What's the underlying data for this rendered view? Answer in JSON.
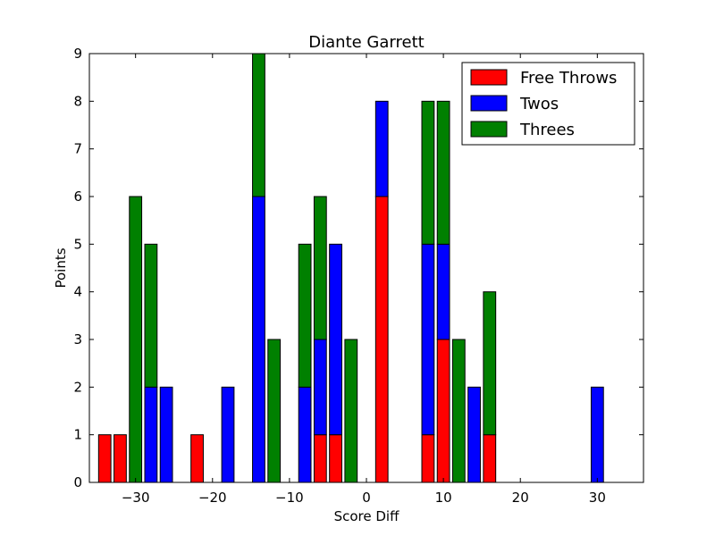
{
  "chart_data": {
    "type": "bar",
    "stacked": true,
    "title": "Diante Garrett",
    "xlabel": "Score Diff",
    "ylabel": "Points",
    "xlim": [
      -36,
      36
    ],
    "ylim": [
      0,
      9
    ],
    "xticks": [
      -30,
      -20,
      -10,
      0,
      10,
      20,
      30
    ],
    "yticks": [
      0,
      1,
      2,
      3,
      4,
      5,
      6,
      7,
      8,
      9
    ],
    "x": [
      -35,
      -34,
      -32,
      -30,
      -28,
      -26,
      -24,
      -22,
      -20,
      -18,
      -16,
      -14,
      -12,
      -10,
      -8,
      -6,
      -4,
      -2,
      0,
      2,
      4,
      6,
      8,
      10,
      12,
      14,
      16,
      18,
      20,
      22,
      24,
      26,
      28,
      30,
      32,
      34
    ],
    "series": [
      {
        "name": "Free Throws",
        "color": "#ff0000",
        "values": [
          0,
          1,
          1,
          0,
          0,
          0,
          0,
          1,
          0,
          0,
          0,
          0,
          0,
          0,
          0,
          1,
          1,
          0,
          0,
          6,
          0,
          0,
          1,
          3,
          0,
          0,
          1,
          0,
          0,
          0,
          0,
          0,
          0,
          0,
          0,
          0
        ]
      },
      {
        "name": "Twos",
        "color": "#0000ff",
        "values": [
          0,
          0,
          0,
          0,
          2,
          2,
          0,
          0,
          0,
          2,
          0,
          6,
          0,
          0,
          2,
          2,
          4,
          0,
          0,
          2,
          0,
          0,
          4,
          2,
          0,
          2,
          0,
          0,
          0,
          0,
          0,
          0,
          0,
          2,
          0,
          0
        ]
      },
      {
        "name": "Threes",
        "color": "#008000",
        "values": [
          0,
          0,
          0,
          6,
          3,
          0,
          0,
          0,
          0,
          0,
          0,
          3,
          3,
          0,
          3,
          3,
          0,
          3,
          0,
          0,
          0,
          0,
          3,
          3,
          3,
          0,
          3,
          0,
          0,
          0,
          0,
          0,
          0,
          0,
          0,
          0
        ]
      }
    ],
    "legend": {
      "position": "top-right",
      "entries": [
        "Free Throws",
        "Twos",
        "Threes"
      ]
    },
    "grid": false
  }
}
